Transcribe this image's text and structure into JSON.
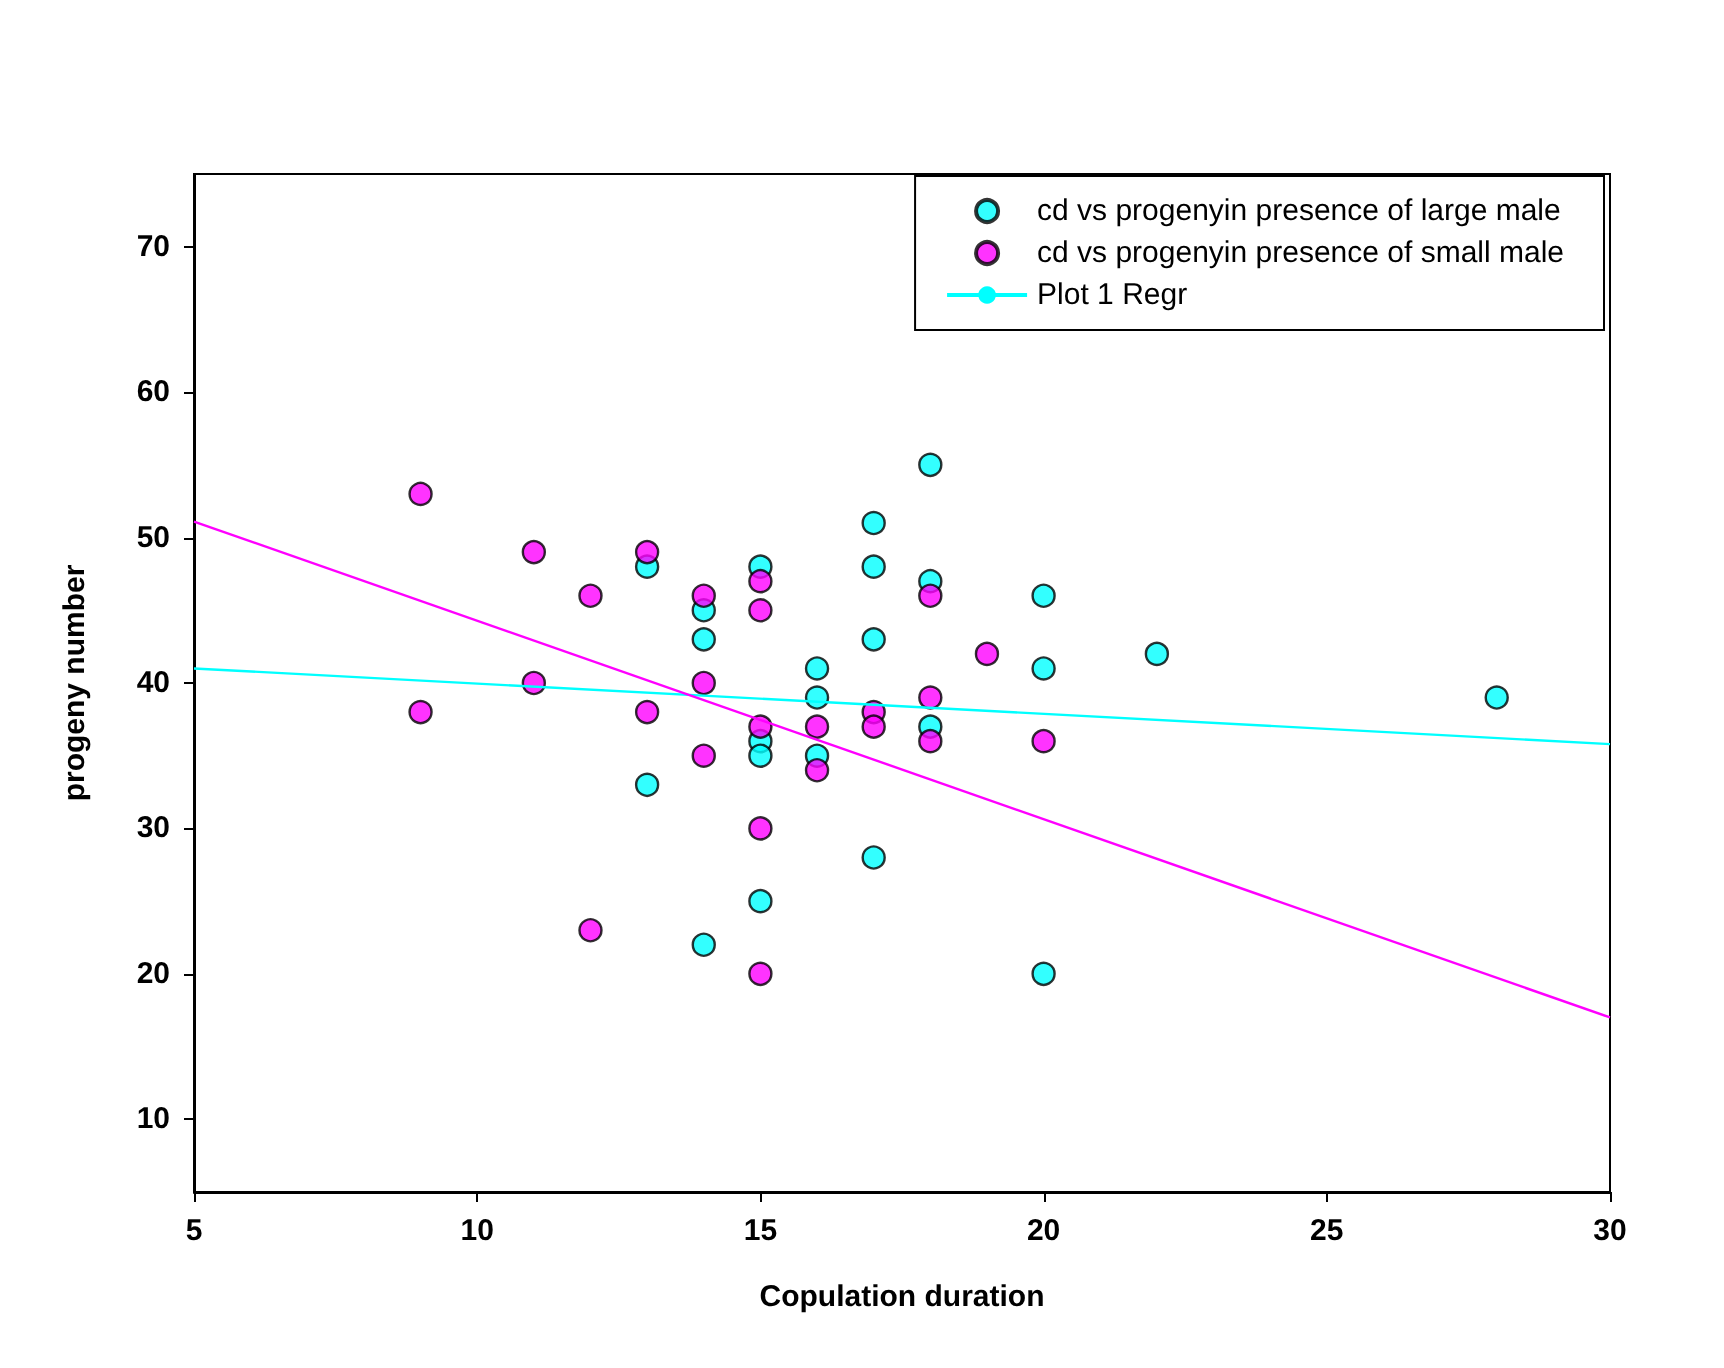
{
  "chart_data": {
    "type": "scatter",
    "xlabel": "Copulation duration",
    "ylabel": "progeny number",
    "xlim": [
      5,
      30
    ],
    "xticks": [
      5,
      10,
      15,
      20,
      25,
      30
    ],
    "ylim": [
      5,
      75
    ],
    "yticks": [
      10,
      20,
      30,
      40,
      50,
      60,
      70
    ],
    "grid": false,
    "legend": "top right",
    "marker": "circle",
    "series": [
      {
        "name": "cd vs progenyin presence of large male",
        "color": "#00ffff",
        "x": [
          13,
          13,
          14,
          14,
          14,
          15,
          15,
          15,
          15,
          16,
          16,
          16,
          17,
          17,
          17,
          17,
          18,
          18,
          18,
          20,
          20,
          20,
          22,
          28
        ],
        "values": [
          48,
          33,
          45,
          43,
          22,
          48,
          36,
          35,
          25,
          41,
          39,
          35,
          51,
          48,
          43,
          28,
          55,
          47,
          37,
          46,
          41,
          20,
          42,
          39
        ]
      },
      {
        "name": "cd vs progenyin presence of small male",
        "color": "#ff00ff",
        "x": [
          9,
          9,
          11,
          11,
          12,
          12,
          13,
          13,
          14,
          14,
          14,
          15,
          15,
          15,
          15,
          15,
          16,
          16,
          17,
          17,
          18,
          18,
          18,
          19,
          20
        ],
        "values": [
          53,
          38,
          49,
          40,
          46,
          23,
          49,
          38,
          46,
          40,
          35,
          47,
          45,
          37,
          30,
          20,
          37,
          34,
          38,
          37,
          46,
          39,
          36,
          42,
          36
        ]
      },
      {
        "name": "Plot 1 Regr",
        "type": "line",
        "marker": "none",
        "line_style": "solid",
        "color": "#00ffff",
        "x": [
          5,
          30
        ],
        "values": [
          41,
          35.8
        ]
      },
      {
        "type": "line",
        "marker": "none",
        "line_style": "solid",
        "color": "#ff00ff",
        "x": [
          5,
          30
        ],
        "values": [
          51.1,
          17
        ]
      }
    ]
  }
}
